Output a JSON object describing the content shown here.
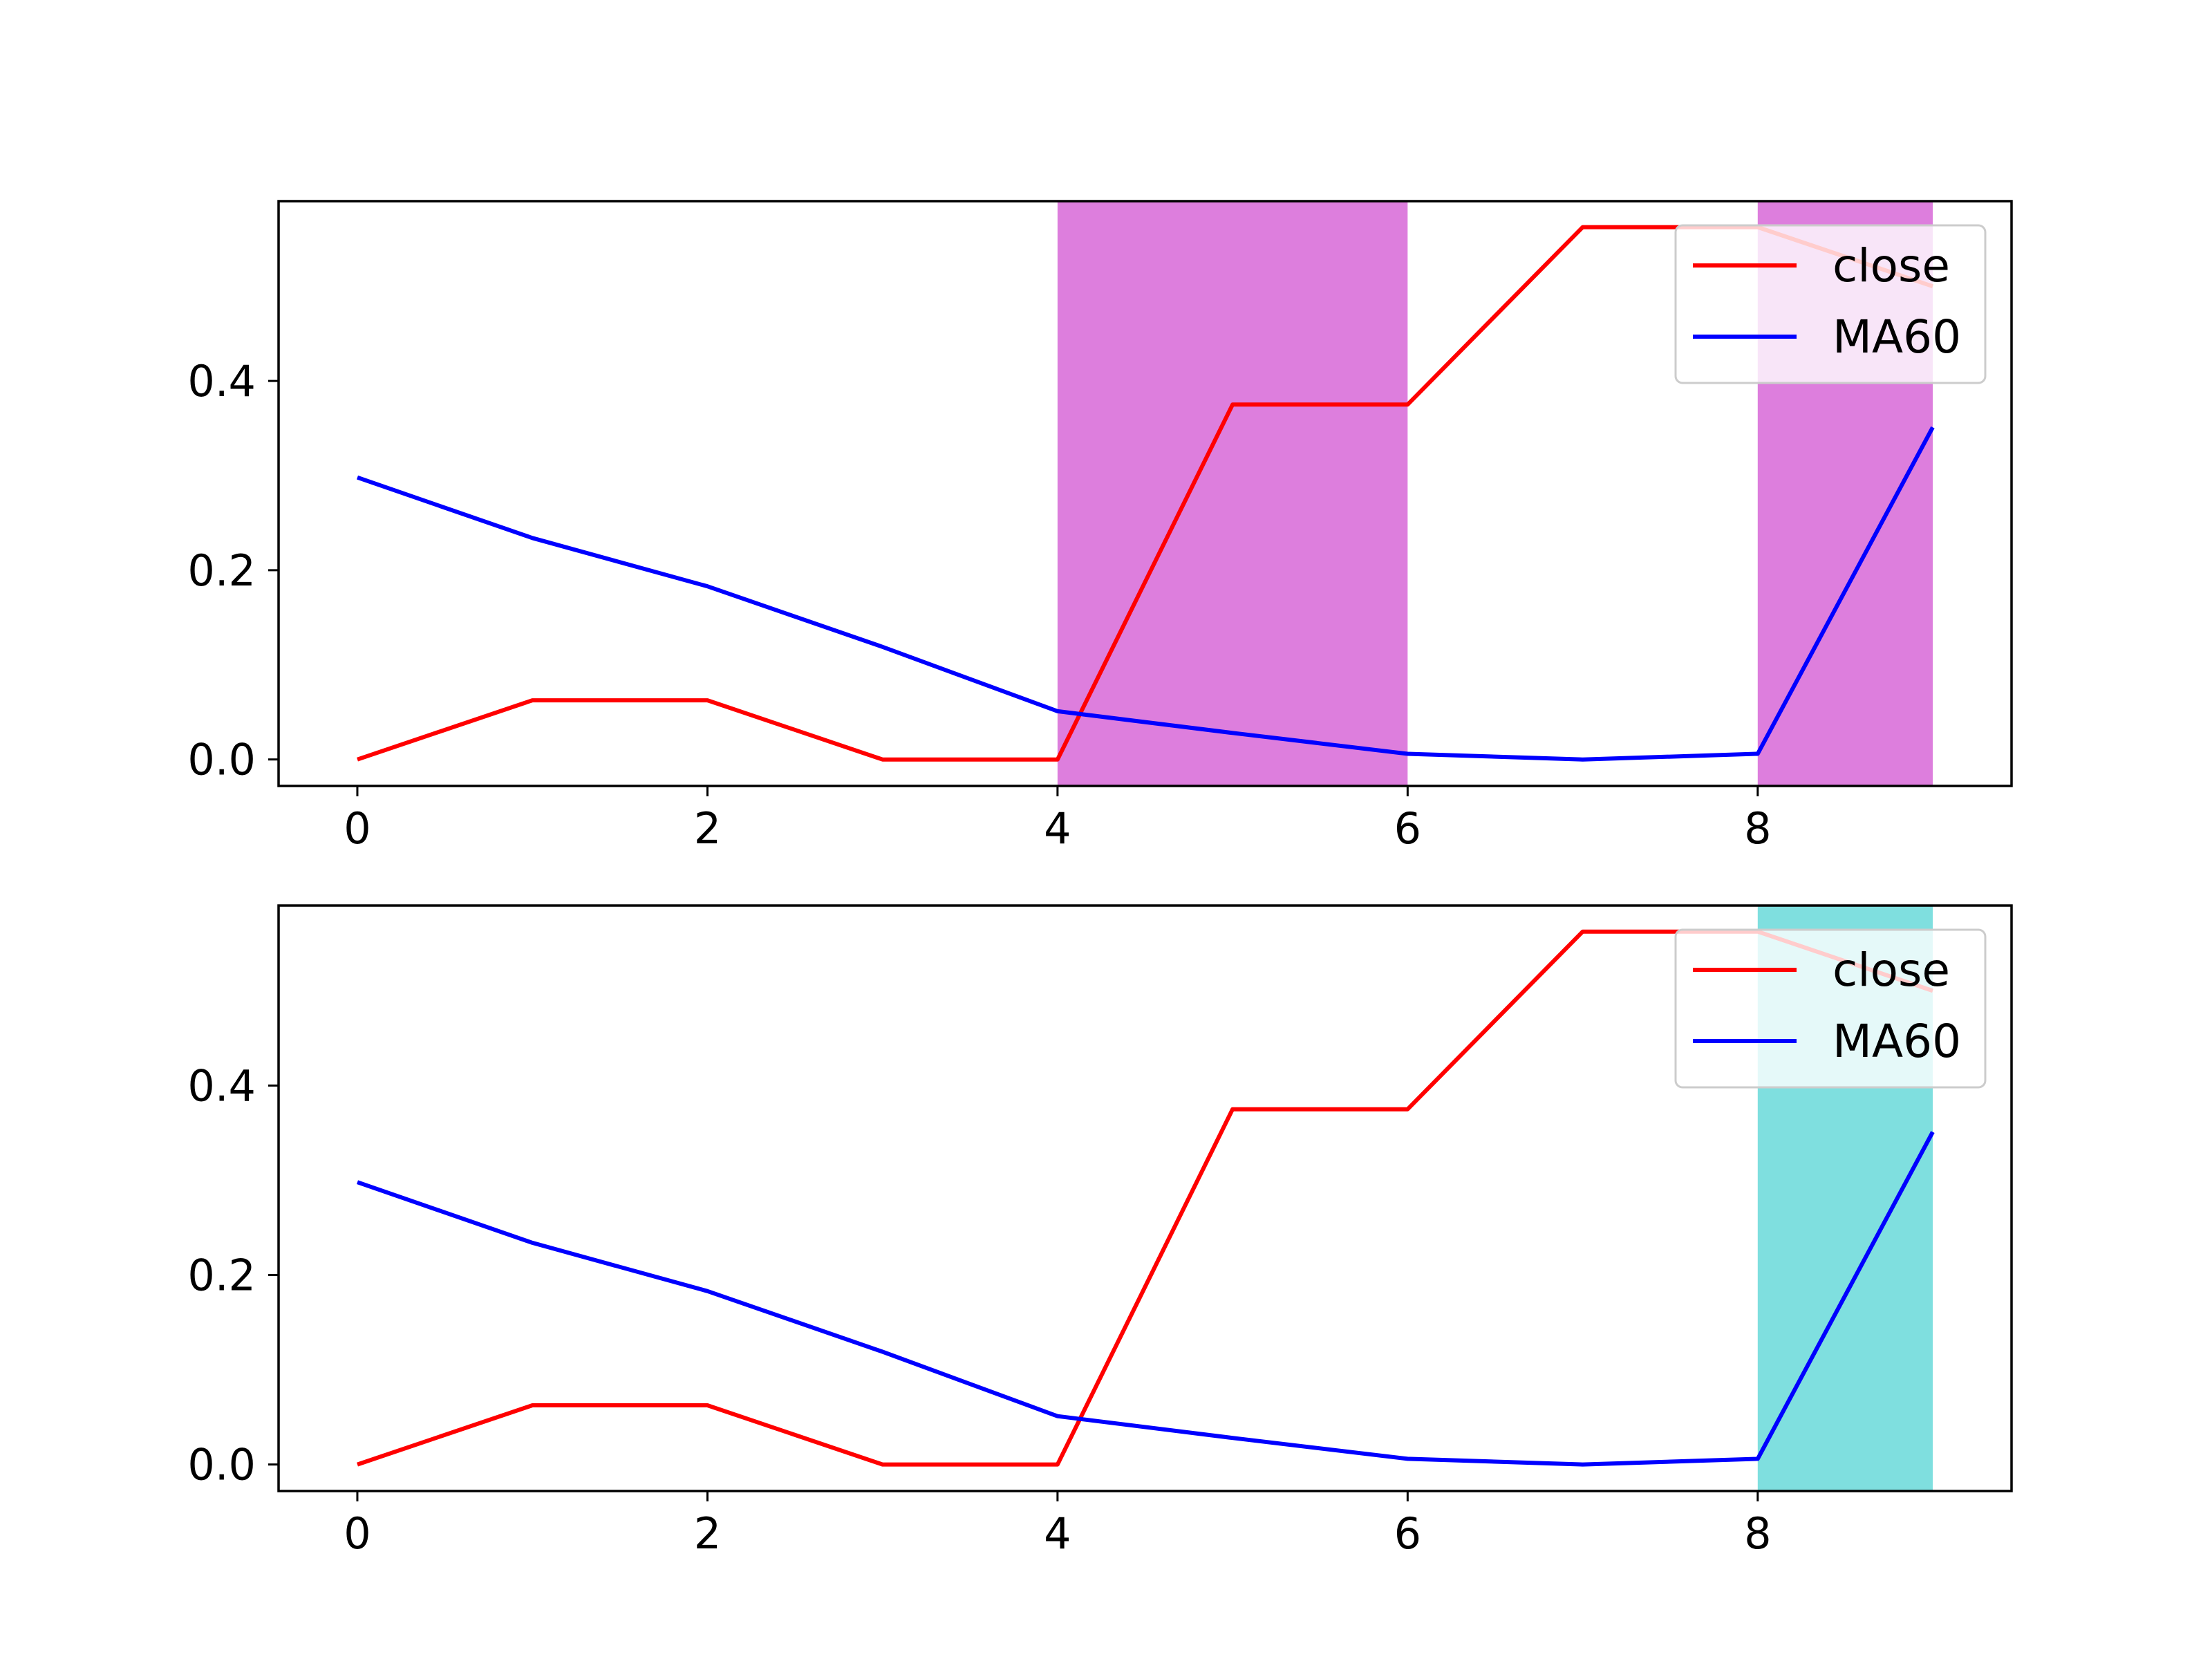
{
  "chart_data": [
    {
      "type": "line",
      "x": [
        0,
        1,
        2,
        3,
        4,
        5,
        6,
        7,
        8,
        9
      ],
      "series": [
        {
          "name": "close",
          "color": "#ff0000",
          "values": [
            0.0,
            0.0625,
            0.0625,
            0.0,
            0.0,
            0.375,
            0.375,
            0.5625,
            0.5625,
            0.5
          ]
        },
        {
          "name": "MA60",
          "color": "#0000ff",
          "values": [
            0.298,
            0.234,
            0.183,
            0.119,
            0.051,
            0.028,
            0.006,
            0.0,
            0.006,
            0.351
          ]
        }
      ],
      "shaded_spans": [
        {
          "x_start": 4,
          "x_end": 6,
          "color": "#dd7edd"
        },
        {
          "x_start": 8,
          "x_end": 9,
          "color": "#dd7edd"
        }
      ],
      "xlim": [
        -0.45,
        9.45
      ],
      "ylim": [
        -0.028,
        0.59
      ],
      "xticks": [
        "0",
        "2",
        "4",
        "6",
        "8"
      ],
      "xtick_values": [
        0,
        2,
        4,
        6,
        8
      ],
      "yticks": [
        "0.0",
        "0.2",
        "0.4"
      ],
      "ytick_values": [
        0.0,
        0.2,
        0.4
      ],
      "legend_position": "top-right",
      "grid": false,
      "title": "",
      "xlabel": "",
      "ylabel": ""
    },
    {
      "type": "line",
      "x": [
        0,
        1,
        2,
        3,
        4,
        5,
        6,
        7,
        8,
        9
      ],
      "series": [
        {
          "name": "close",
          "color": "#ff0000",
          "values": [
            0.0,
            0.0625,
            0.0625,
            0.0,
            0.0,
            0.375,
            0.375,
            0.5625,
            0.5625,
            0.5
          ]
        },
        {
          "name": "MA60",
          "color": "#0000ff",
          "values": [
            0.298,
            0.234,
            0.183,
            0.119,
            0.051,
            0.028,
            0.006,
            0.0,
            0.006,
            0.351
          ]
        }
      ],
      "shaded_spans": [
        {
          "x_start": 8,
          "x_end": 9,
          "color": "#7fdfdf"
        }
      ],
      "xlim": [
        -0.45,
        9.45
      ],
      "ylim": [
        -0.028,
        0.59
      ],
      "xticks": [
        "0",
        "2",
        "4",
        "6",
        "8"
      ],
      "xtick_values": [
        0,
        2,
        4,
        6,
        8
      ],
      "yticks": [
        "0.0",
        "0.2",
        "0.4"
      ],
      "ytick_values": [
        0.0,
        0.2,
        0.4
      ],
      "legend_position": "top-right",
      "grid": false,
      "title": "",
      "xlabel": "",
      "ylabel": ""
    }
  ]
}
